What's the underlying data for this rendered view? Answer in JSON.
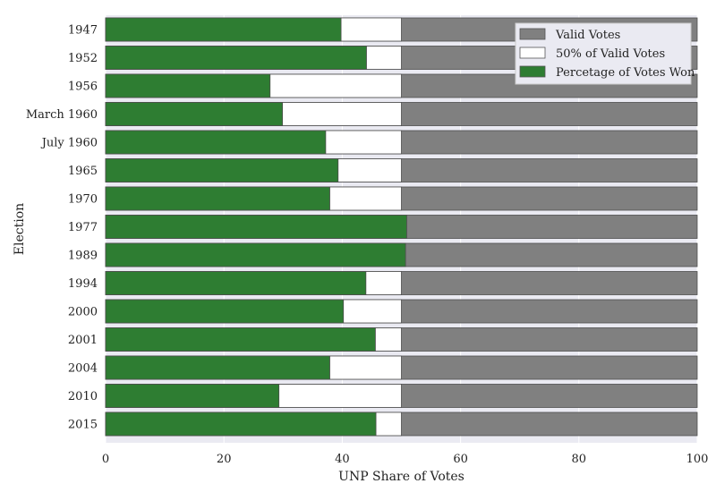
{
  "chart_data": {
    "type": "bar",
    "orientation": "horizontal",
    "stacking": "overlay",
    "title": "",
    "xlabel": "UNP Share of Votes",
    "ylabel": "Election",
    "xlim": [
      0,
      100
    ],
    "xticks": [
      0,
      20,
      40,
      60,
      80,
      100
    ],
    "grid": true,
    "legend_position": "top-right",
    "categories": [
      "1947",
      "1952",
      "1956",
      "March 1960",
      "July 1960",
      "1965",
      "1970",
      "1977",
      "1989",
      "1994",
      "2000",
      "2001",
      "2004",
      "2010",
      "2015"
    ],
    "series": [
      {
        "name": "Valid Votes",
        "color": "#808080",
        "values": [
          100,
          100,
          100,
          100,
          100,
          100,
          100,
          100,
          100,
          100,
          100,
          100,
          100,
          100,
          100
        ]
      },
      {
        "name": "50% of Valid Votes",
        "color": "#ffffff",
        "values": [
          50,
          50,
          50,
          50,
          50,
          50,
          50,
          50,
          50,
          50,
          50,
          50,
          50,
          50,
          50
        ]
      },
      {
        "name": "Percetage of Votes Won",
        "color": "#2e7d32",
        "values": [
          39.8,
          44.1,
          27.8,
          29.9,
          37.2,
          39.3,
          37.9,
          50.9,
          50.7,
          44.0,
          40.2,
          45.6,
          37.9,
          29.3,
          45.7
        ]
      }
    ]
  }
}
